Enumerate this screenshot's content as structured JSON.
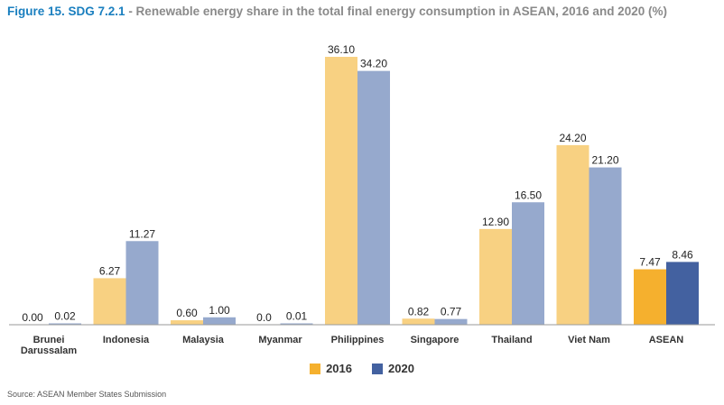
{
  "title": {
    "figure": "Figure 15. SDG 7.2.1",
    "text": " - Renewable energy share in the total final energy consumption in ASEAN, 2016 and 2020 (%)"
  },
  "legend": {
    "items": [
      {
        "label": "2016",
        "color": "#f5b02e"
      },
      {
        "label": "2020",
        "color": "#4361a0"
      }
    ]
  },
  "source": "Source: ASEAN Member States Submission",
  "colors": {
    "light_2016": "#f8d182",
    "light_2020": "#96a9cd",
    "dark_2016": "#f5b02e",
    "dark_2020": "#4361a0"
  },
  "chart_data": {
    "type": "bar",
    "categories": [
      "Brunei Darussalam",
      "Indonesia",
      "Malaysia",
      "Myanmar",
      "Philippines",
      "Singapore",
      "Thailand",
      "Viet Nam",
      "ASEAN"
    ],
    "series": [
      {
        "name": "2016",
        "values": [
          0.0,
          6.27,
          0.6,
          0.0,
          36.1,
          0.82,
          12.9,
          24.2,
          7.47
        ],
        "labels": [
          "0.00",
          "6.27",
          "0.60",
          "0.0",
          "36.10",
          "0.82",
          "12.90",
          "24.20",
          "7.47"
        ]
      },
      {
        "name": "2020",
        "values": [
          0.02,
          11.27,
          1.0,
          0.01,
          34.2,
          0.77,
          16.5,
          21.2,
          8.46
        ],
        "labels": [
          "0.02",
          "11.27",
          "1.00",
          "0.01",
          "34.20",
          "0.77",
          "16.50",
          "21.20",
          "8.46"
        ]
      }
    ],
    "highlight_category": "ASEAN",
    "ylim": [
      0,
      36.1
    ],
    "grid": false,
    "legend_position": "bottom-center"
  }
}
